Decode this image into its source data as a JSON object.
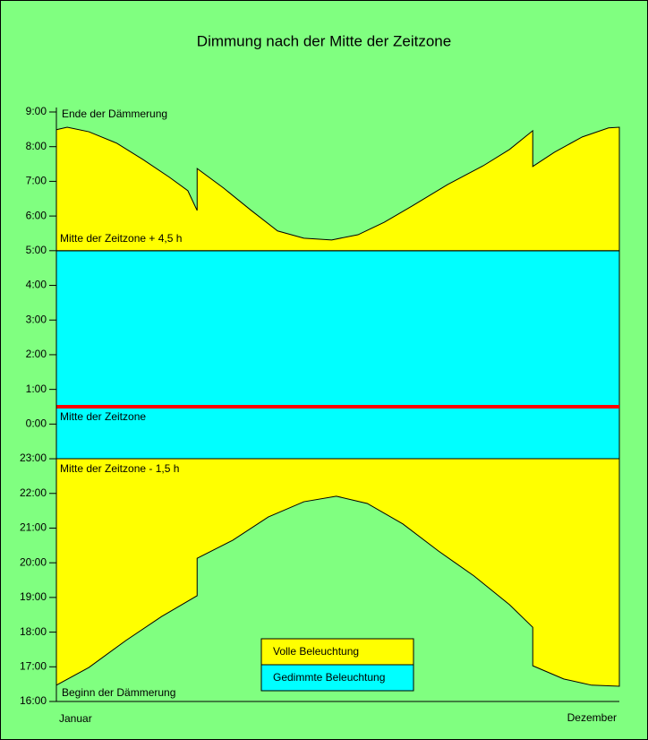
{
  "chart_data": {
    "type": "area",
    "title": "Dimmung nach der Mitte der Zeitzone",
    "xlim": [
      1,
      365
    ],
    "x_axis_labels": [
      "Januar",
      "Dezember"
    ],
    "ylim": [
      16,
      33
    ],
    "yticks": [
      {
        "value": 16,
        "label": "16:00"
      },
      {
        "value": 17,
        "label": "17:00"
      },
      {
        "value": 18,
        "label": "18:00"
      },
      {
        "value": 19,
        "label": "19:00"
      },
      {
        "value": 20,
        "label": "20:00"
      },
      {
        "value": 21,
        "label": "21:00"
      },
      {
        "value": 22,
        "label": "22:00"
      },
      {
        "value": 23,
        "label": "23:00"
      },
      {
        "value": 24,
        "label": "0:00"
      },
      {
        "value": 25,
        "label": "1:00"
      },
      {
        "value": 26,
        "label": "2:00"
      },
      {
        "value": 27,
        "label": "3:00"
      },
      {
        "value": 28,
        "label": "4:00"
      },
      {
        "value": 29,
        "label": "5:00"
      },
      {
        "value": 30,
        "label": "6:00"
      },
      {
        "value": 31,
        "label": "7:00"
      },
      {
        "value": 32,
        "label": "8:00"
      },
      {
        "value": 33,
        "label": "9:00"
      }
    ],
    "curves": [
      {
        "label": "Ende der Dämmerung",
        "x": [
          1,
          8,
          22,
          40,
          57,
          74,
          86,
          92,
          92,
          109,
          127,
          144,
          161,
          179,
          196,
          213,
          231,
          254,
          277,
          294,
          309,
          309,
          323,
          341,
          358,
          365
        ],
        "y": [
          32.49,
          32.56,
          32.43,
          32.1,
          31.63,
          31.12,
          30.73,
          30.16,
          31.37,
          30.81,
          30.16,
          29.57,
          29.36,
          29.31,
          29.46,
          29.82,
          30.29,
          30.91,
          31.45,
          31.92,
          32.46,
          31.43,
          31.84,
          32.28,
          32.54,
          32.56
        ]
      },
      {
        "label": "Beginn der Dämmerung",
        "x": [
          1,
          22,
          46,
          69,
          92,
          92,
          115,
          138,
          161,
          182,
          202,
          225,
          248,
          271,
          294,
          309,
          309,
          329,
          347,
          365
        ],
        "y": [
          16.47,
          16.98,
          17.76,
          18.45,
          19.05,
          20.13,
          20.65,
          21.32,
          21.76,
          21.92,
          21.71,
          21.12,
          20.34,
          19.62,
          18.79,
          18.14,
          17.03,
          16.65,
          16.47,
          16.44
        ]
      }
    ],
    "levels": [
      {
        "label": "Mitte der Zeitzone + 4,5 h",
        "value": 29,
        "color": "#000000"
      },
      {
        "label": "Mitte der Zeitzone",
        "value": 24.5,
        "color": "#ff0000"
      },
      {
        "label": "Mitte der Zeitzone - 1,5 h",
        "value": 23,
        "color": "#000000"
      }
    ],
    "series": [
      {
        "name": "Volle Beleuchtung",
        "color": "#ffff00"
      },
      {
        "name": "Gedimmte Beleuchtung",
        "color": "#00ffff"
      }
    ]
  }
}
